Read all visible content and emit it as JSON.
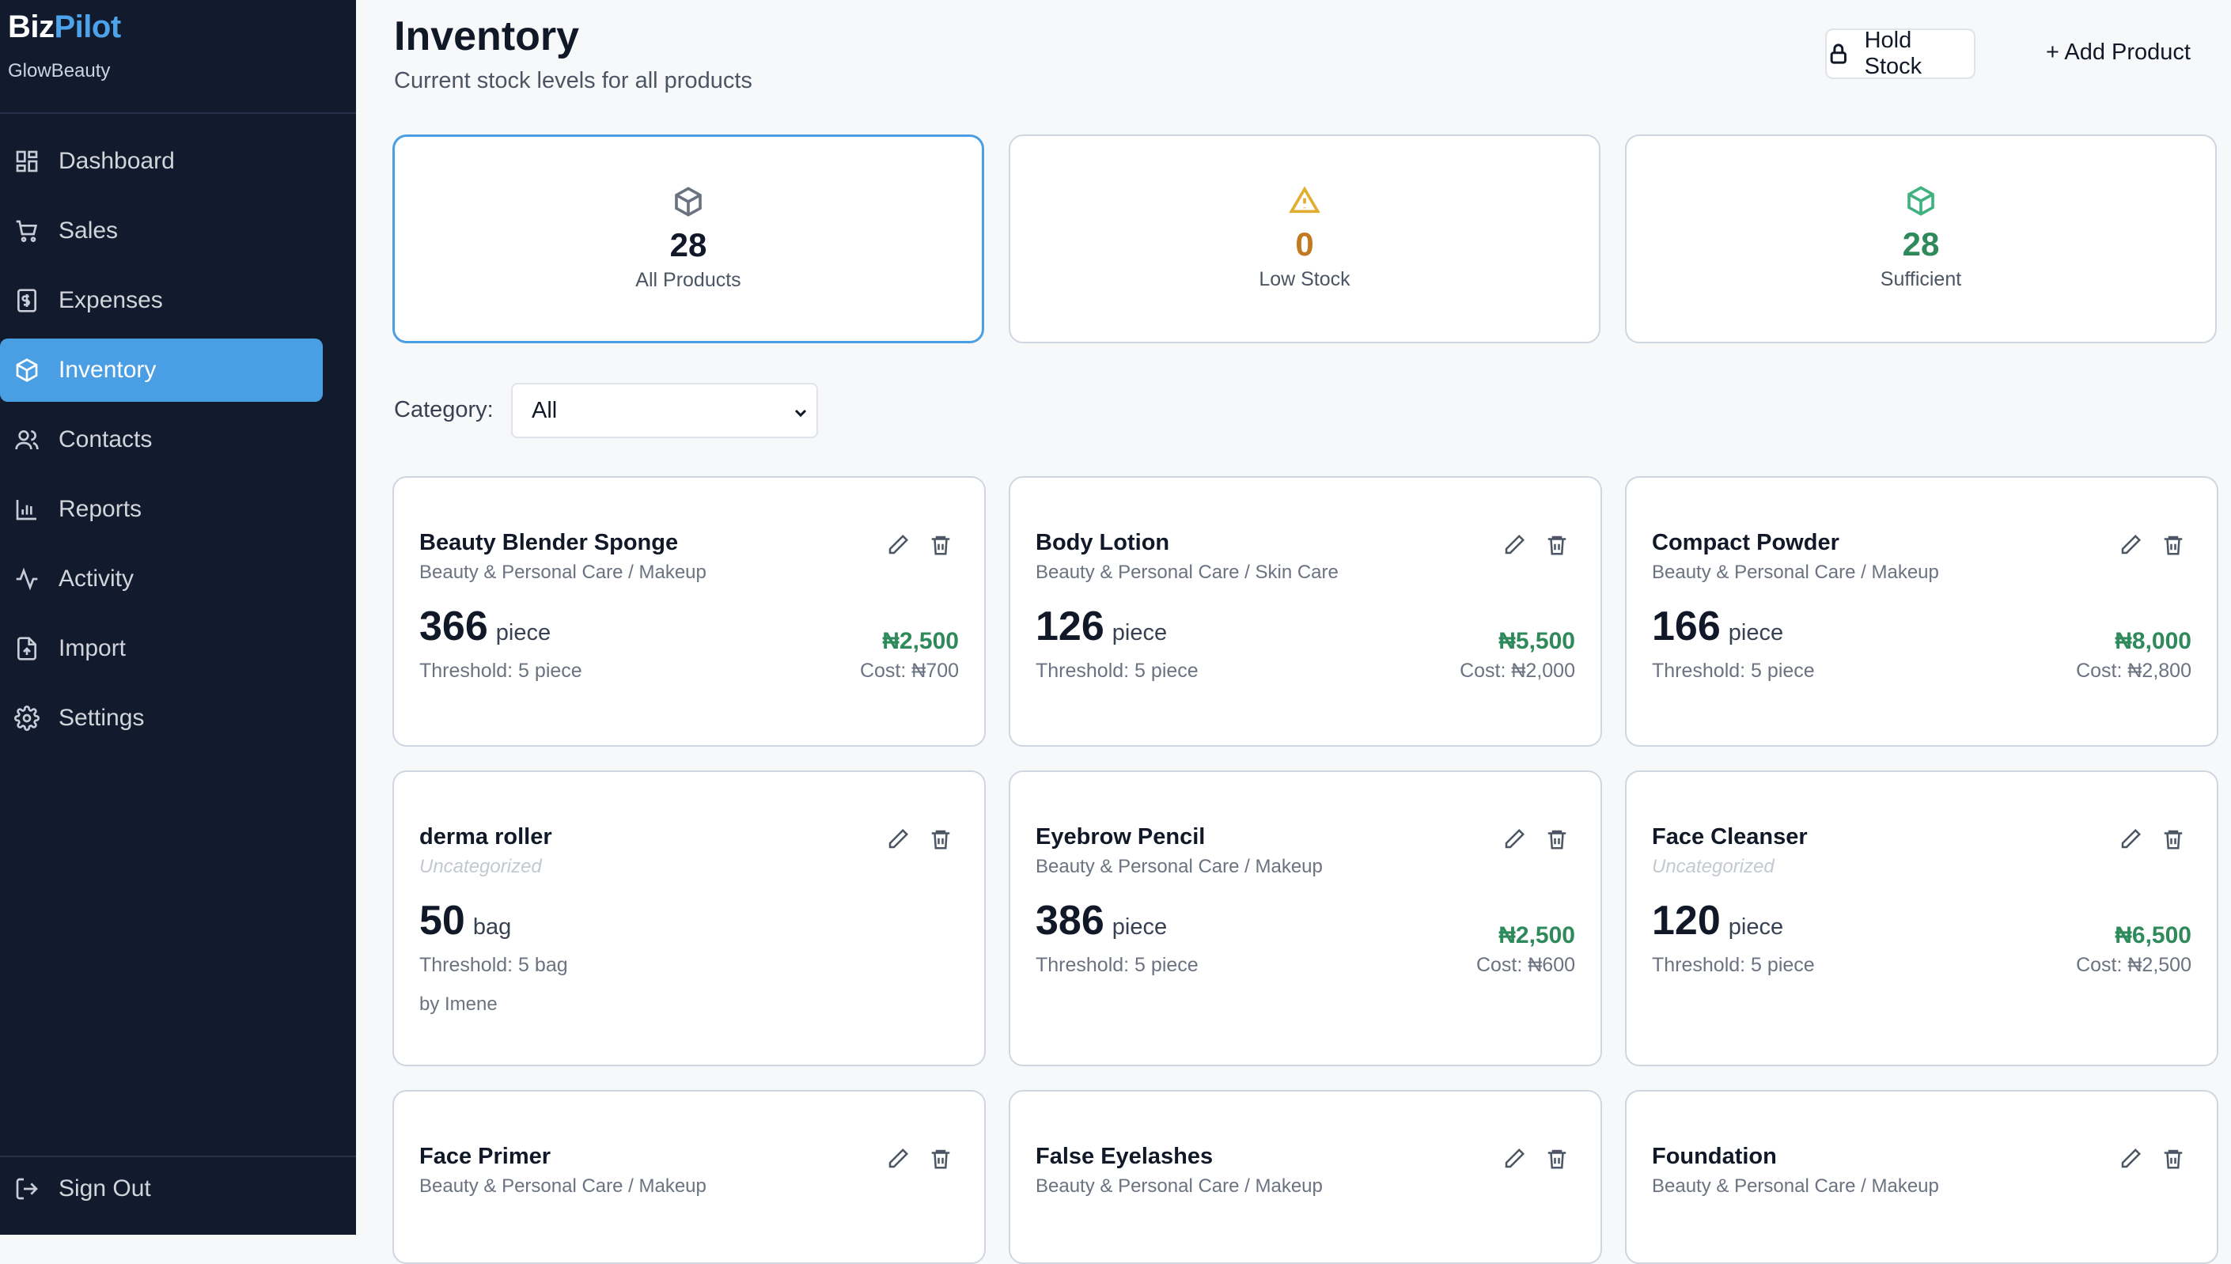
{
  "sidebar": {
    "brand_a": "Biz",
    "brand_b": "Pilot",
    "org": "GlowBeauty",
    "items": [
      {
        "label": "Dashboard",
        "icon": "grid-icon"
      },
      {
        "label": "Sales",
        "icon": "cart-icon"
      },
      {
        "label": "Expenses",
        "icon": "receipt-icon"
      },
      {
        "label": "Inventory",
        "icon": "box-icon",
        "active": true
      },
      {
        "label": "Contacts",
        "icon": "users-icon"
      },
      {
        "label": "Reports",
        "icon": "bar-chart-icon"
      },
      {
        "label": "Activity",
        "icon": "activity-icon"
      },
      {
        "label": "Import",
        "icon": "file-import-icon"
      },
      {
        "label": "Settings",
        "icon": "gear-icon"
      }
    ],
    "signout": "Sign Out"
  },
  "header": {
    "title": "Inventory",
    "subtitle": "Current stock levels for all products",
    "hold_stock": "Hold Stock",
    "add_product": "+ Add Product"
  },
  "stats": [
    {
      "value": "28",
      "label": "All Products",
      "color": "#111827",
      "icon_color": "#6b7280"
    },
    {
      "value": "0",
      "label": "Low Stock",
      "color": "#c2791f",
      "icon_color": "#e2ad2f"
    },
    {
      "value": "28",
      "label": "Sufficient",
      "color": "#2f8a5b",
      "icon_color": "#3fb27f"
    }
  ],
  "filter": {
    "label": "Category:",
    "value": "All"
  },
  "products": [
    {
      "name": "Beauty Blender Sponge",
      "category": "Beauty & Personal Care / Makeup",
      "qty": "366",
      "unit": "piece",
      "threshold": "Threshold: 5 piece",
      "price": "₦2,500",
      "cost": "Cost: ₦700"
    },
    {
      "name": "Body Lotion",
      "category": "Beauty & Personal Care / Skin Care",
      "qty": "126",
      "unit": "piece",
      "threshold": "Threshold: 5 piece",
      "price": "₦5,500",
      "cost": "Cost: ₦2,000"
    },
    {
      "name": "Compact Powder",
      "category": "Beauty & Personal Care / Makeup",
      "qty": "166",
      "unit": "piece",
      "threshold": "Threshold: 5 piece",
      "price": "₦8,000",
      "cost": "Cost: ₦2,800"
    },
    {
      "name": "derma roller",
      "category": "Uncategorized",
      "uncategorized": true,
      "qty": "50",
      "unit": "bag",
      "threshold": "Threshold: 5 bag",
      "by": "by Imene"
    },
    {
      "name": "Eyebrow Pencil",
      "category": "Beauty & Personal Care / Makeup",
      "qty": "386",
      "unit": "piece",
      "threshold": "Threshold: 5 piece",
      "price": "₦2,500",
      "cost": "Cost: ₦600"
    },
    {
      "name": "Face Cleanser",
      "category": "Uncategorized",
      "uncategorized": true,
      "qty": "120",
      "unit": "piece",
      "threshold": "Threshold: 5 piece",
      "price": "₦6,500",
      "cost": "Cost: ₦2,500"
    },
    {
      "name": "Face Primer",
      "category": "Beauty & Personal Care / Makeup"
    },
    {
      "name": "False Eyelashes",
      "category": "Beauty & Personal Care / Makeup"
    },
    {
      "name": "Foundation",
      "category": "Beauty & Personal Care / Makeup"
    }
  ]
}
